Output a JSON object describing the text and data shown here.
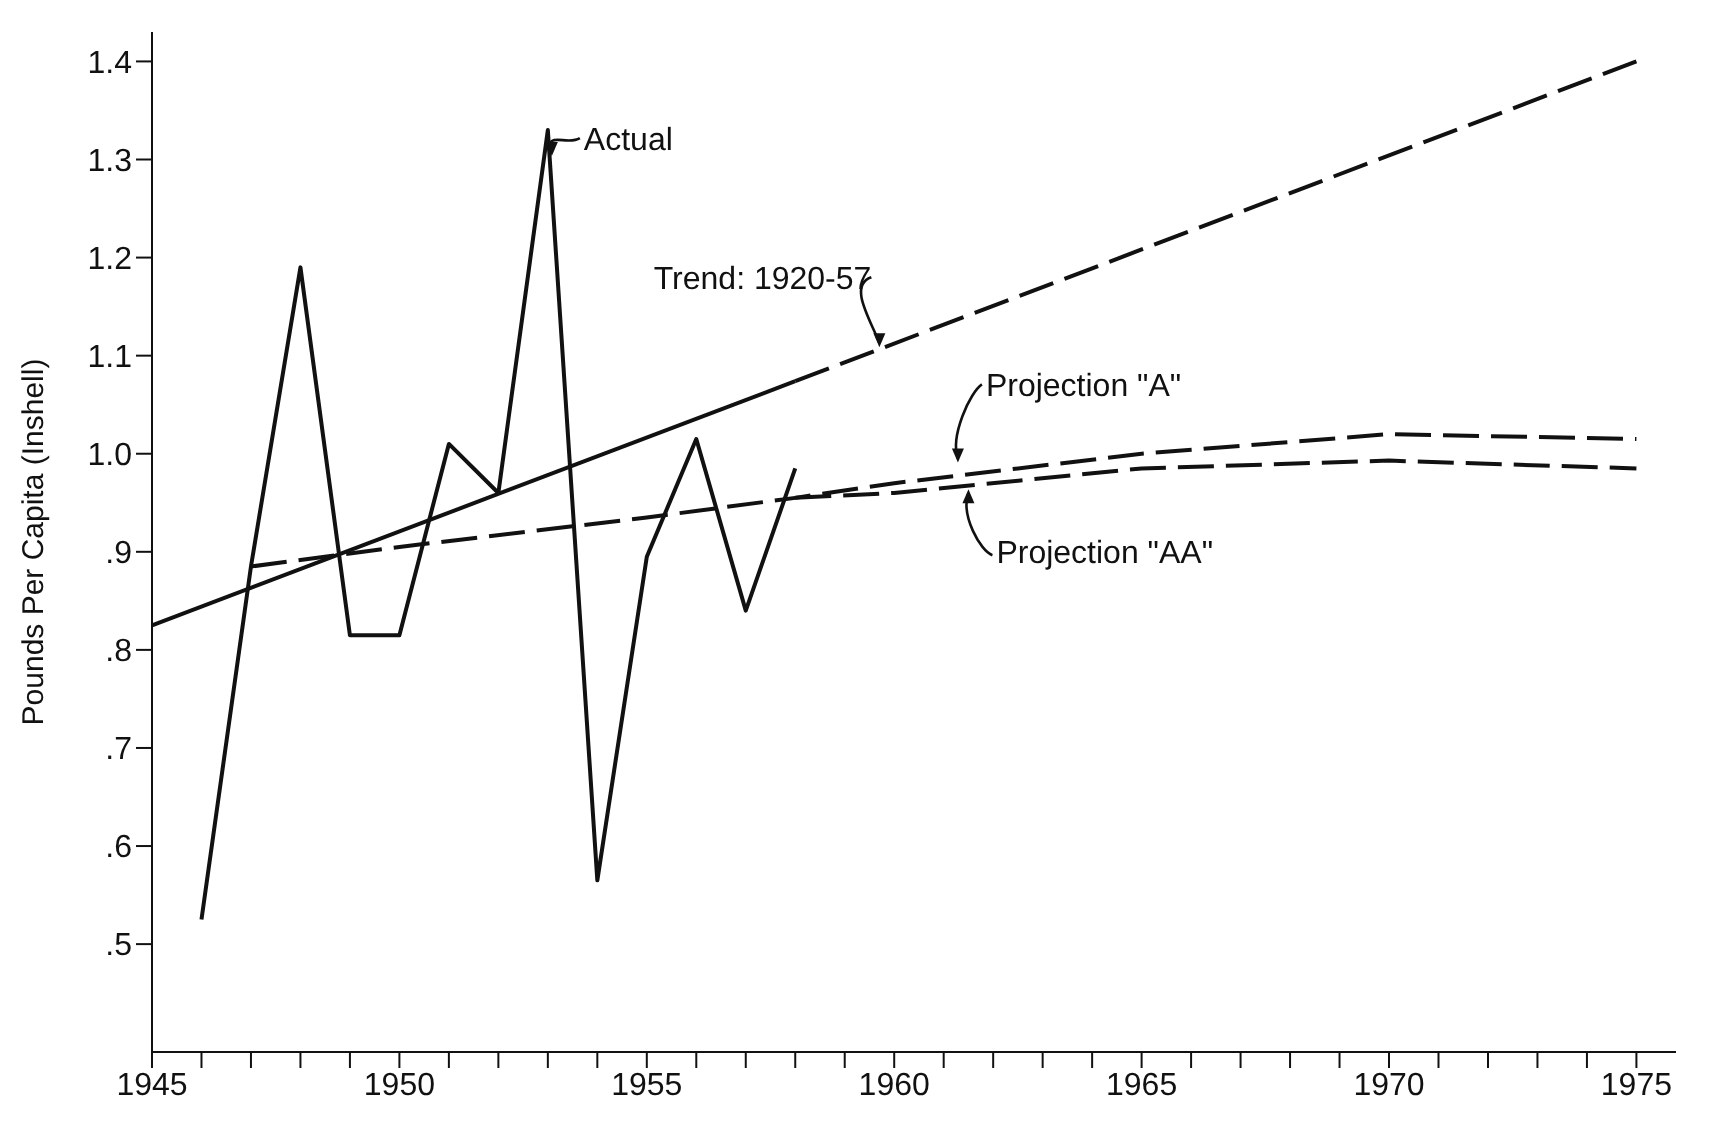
{
  "chart_data": {
    "type": "line",
    "ylabel": "Pounds Per Capita (Inshell)",
    "xlim": [
      1945,
      1975.8
    ],
    "ylim": [
      0.39,
      1.43
    ],
    "xticks": [
      1945,
      {
        "value": 1946,
        "label": null
      },
      {
        "value": 1947,
        "label": null
      },
      {
        "value": 1948,
        "label": null
      },
      {
        "value": 1949,
        "label": null
      },
      1950,
      {
        "value": 1951,
        "label": null
      },
      {
        "value": 1952,
        "label": null
      },
      {
        "value": 1953,
        "label": null
      },
      {
        "value": 1954,
        "label": null
      },
      1955,
      {
        "value": 1956,
        "label": null
      },
      {
        "value": 1957,
        "label": null
      },
      {
        "value": 1958,
        "label": null
      },
      {
        "value": 1959,
        "label": null
      },
      1960,
      {
        "value": 1961,
        "label": null
      },
      {
        "value": 1962,
        "label": null
      },
      {
        "value": 1963,
        "label": null
      },
      {
        "value": 1964,
        "label": null
      },
      1965,
      {
        "value": 1966,
        "label": null
      },
      {
        "value": 1967,
        "label": null
      },
      {
        "value": 1968,
        "label": null
      },
      {
        "value": 1969,
        "label": null
      },
      1970,
      {
        "value": 1971,
        "label": null
      },
      {
        "value": 1972,
        "label": null
      },
      {
        "value": 1973,
        "label": null
      },
      {
        "value": 1974,
        "label": null
      },
      1975
    ],
    "yticks": [
      {
        "value": 0.5,
        "label": ".5"
      },
      {
        "value": 0.6,
        "label": ".6"
      },
      {
        "value": 0.7,
        "label": ".7"
      },
      {
        "value": 0.8,
        "label": ".8"
      },
      {
        "value": 0.9,
        "label": ".9"
      },
      {
        "value": 1.0,
        "label": "1.0"
      },
      1.1,
      1.2,
      1.3,
      1.4
    ],
    "marker": "none",
    "series": [
      {
        "name": "Actual",
        "color": "#111111",
        "line_style": "solid",
        "x": [
          1946,
          1947,
          1948,
          1949,
          1950,
          1951,
          1952,
          1953,
          1954,
          1955,
          1956,
          1957,
          1958
        ],
        "values": [
          0.525,
          0.885,
          1.19,
          0.815,
          0.815,
          1.01,
          0.96,
          1.33,
          0.565,
          0.895,
          1.015,
          0.84,
          0.985
        ]
      },
      {
        "color": "#111111",
        "line_style": "solid",
        "x": [
          1945,
          1958
        ],
        "values": [
          0.825,
          1.074
        ]
      },
      {
        "name": "Trend: 1920-57",
        "color": "#111111",
        "line_style": "dashed",
        "x": [
          1958,
          1975
        ],
        "values": [
          1.074,
          1.4
        ]
      },
      {
        "name": "Projection \"A\"",
        "color": "#111111",
        "line_style": "dashed",
        "x": [
          1947,
          1950,
          1955,
          1958,
          1960,
          1965,
          1970,
          1975
        ],
        "values": [
          0.885,
          0.905,
          0.935,
          0.955,
          0.97,
          1.0,
          1.02,
          1.015
        ]
      },
      {
        "name": "Projection \"AA\"",
        "color": "#111111",
        "line_style": "dashed",
        "x": [
          1958,
          1960,
          1965,
          1970,
          1975
        ],
        "values": [
          0.955,
          0.96,
          0.985,
          0.993,
          0.985
        ]
      }
    ]
  }
}
